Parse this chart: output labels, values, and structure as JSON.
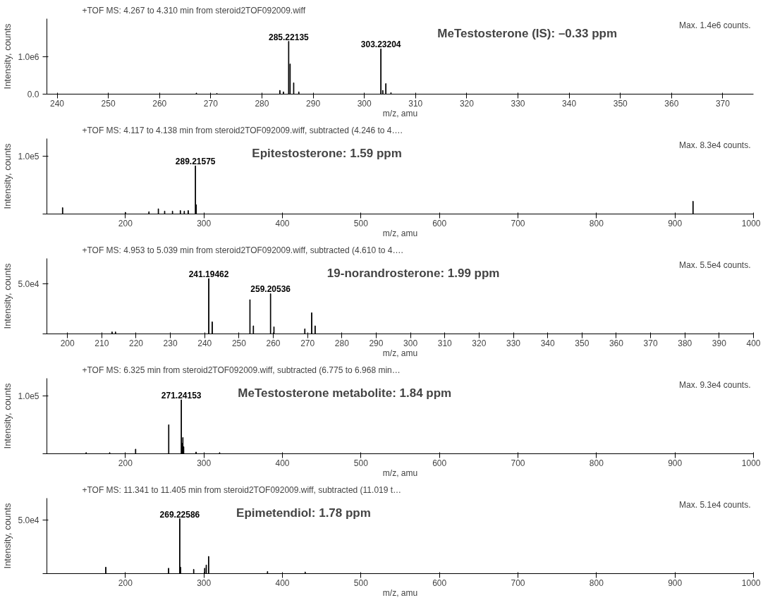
{
  "chart_data": [
    {
      "type": "bar",
      "title": "+TOF MS: 4.267 to 4.310 min from steroid2TOF092009.wiff",
      "xlabel": "m/z, amu",
      "ylabel": "Intensity, counts",
      "color": "#000000",
      "x": [
        267.2,
        271.2,
        283.5,
        284.2,
        285.22135,
        285.5,
        286.2,
        287.2,
        303.23204,
        303.6,
        304.2,
        305.2
      ],
      "values": [
        30000,
        20000,
        100000,
        60000,
        1400000,
        800000,
        300000,
        60000,
        1200000,
        100000,
        280000,
        40000
      ],
      "xlim": [
        238,
        376
      ],
      "xticks": [
        240,
        250,
        260,
        270,
        280,
        290,
        300,
        310,
        320,
        330,
        340,
        350,
        360,
        370
      ],
      "ylim": [
        0,
        2000000
      ],
      "yticks": [
        {
          "value": 0,
          "label": "0.0"
        },
        {
          "value": 1000000,
          "label": "1.0e6"
        }
      ],
      "annotations": [
        {
          "text": "285.22135",
          "x": 285.22135,
          "y": 1400000
        },
        {
          "text": "303.23204",
          "x": 303.23204,
          "y": 1200000
        },
        "MeTestosterone (IS): –0.33 ppm",
        "Max. 1.4e6 counts."
      ]
    },
    {
      "type": "bar",
      "title": "+TOF MS: 4.117 to 4.138 min from steroid2TOF092009.wiff, subtracted (4.246 to 4….",
      "xlabel": "m/z, amu",
      "ylabel": "Intensity, counts",
      "color": "#000000",
      "x": [
        120,
        200,
        230,
        242,
        250,
        260,
        270,
        275,
        280,
        289.21575,
        290.2,
        923
      ],
      "values": [
        11000,
        3000,
        4000,
        9000,
        5000,
        5000,
        6000,
        5000,
        6000,
        83000,
        16000,
        22000
      ],
      "xlim": [
        100,
        1000
      ],
      "xticks": [
        200,
        300,
        400,
        500,
        600,
        700,
        800,
        900,
        1000
      ],
      "ylim": [
        0,
        130000
      ],
      "yticks": [
        {
          "value": 0,
          "label": null
        },
        {
          "value": 100000,
          "label": "1.0e5"
        }
      ],
      "annotations": [
        {
          "text": "289.21575",
          "x": 289.21575,
          "y": 83000
        },
        "Epitestosterone: 1.59 ppm",
        "Max. 8.3e4 counts."
      ]
    },
    {
      "type": "bar",
      "title": "+TOF MS: 4.953 to 5.039 min from steroid2TOF092009.wiff, subtracted (4.610 to 4….",
      "xlabel": "m/z, amu",
      "ylabel": "Intensity, counts",
      "color": "#000000",
      "x": [
        213,
        214,
        241.19462,
        242.2,
        253.2,
        254.2,
        259.20536,
        260.2,
        269.2,
        271.2,
        272.2
      ],
      "values": [
        2000,
        2000,
        55000,
        12000,
        34000,
        8000,
        40000,
        7000,
        5000,
        21000,
        8000
      ],
      "xlim": [
        194,
        400
      ],
      "xticks": [
        200,
        210,
        220,
        230,
        240,
        250,
        260,
        270,
        280,
        290,
        300,
        310,
        320,
        330,
        340,
        350,
        360,
        370,
        380,
        390,
        400
      ],
      "ylim": [
        0,
        75000
      ],
      "yticks": [
        {
          "value": 0,
          "label": null
        },
        {
          "value": 50000,
          "label": "5.0e4"
        }
      ],
      "annotations": [
        {
          "text": "241.19462",
          "x": 241.19462,
          "y": 55000
        },
        {
          "text": "259.20536",
          "x": 259.20536,
          "y": 40000
        },
        "19-norandrosterone: 1.99 ppm",
        "Max. 5.5e4 counts."
      ]
    },
    {
      "type": "bar",
      "title": "+TOF MS: 6.325 min from steroid2TOF092009.wiff, subtracted (6.775 to 6.968 min…",
      "xlabel": "m/z, amu",
      "ylabel": "Intensity, counts",
      "color": "#000000",
      "x": [
        150,
        180,
        213,
        255.2,
        271.24153,
        272.2,
        273.2,
        274.2,
        290,
        320
      ],
      "values": [
        2000,
        2000,
        8000,
        50000,
        93000,
        18000,
        28000,
        12000,
        3000,
        2000
      ],
      "xlim": [
        100,
        1000
      ],
      "xticks": [
        200,
        300,
        400,
        500,
        600,
        700,
        800,
        900,
        1000
      ],
      "ylim": [
        0,
        130000
      ],
      "yticks": [
        {
          "value": 0,
          "label": null
        },
        {
          "value": 100000,
          "label": "1.0e5"
        }
      ],
      "annotations": [
        {
          "text": "271.24153",
          "x": 271.24153,
          "y": 93000
        },
        "MeTestosterone metabolite: 1.84 ppm",
        "Max. 9.3e4 counts."
      ]
    },
    {
      "type": "bar",
      "title": "+TOF MS: 11.341 to 11.405 min from steroid2TOF092009.wiff, subtracted (11.019 t…",
      "xlabel": "m/z, amu",
      "ylabel": "Intensity, counts",
      "color": "#000000",
      "x": [
        175,
        255,
        269.22586,
        270.2,
        287,
        301,
        303,
        306,
        381,
        429
      ],
      "values": [
        6000,
        5000,
        51000,
        6000,
        4000,
        5000,
        8000,
        16000,
        2000,
        1500
      ],
      "xlim": [
        100,
        1000
      ],
      "xticks": [
        200,
        300,
        400,
        500,
        600,
        700,
        800,
        900,
        1000
      ],
      "ylim": [
        0,
        70000
      ],
      "yticks": [
        {
          "value": 0,
          "label": null
        },
        {
          "value": 50000,
          "label": "5.0e4"
        }
      ],
      "annotations": [
        {
          "text": "269.22586",
          "x": 269.22586,
          "y": 51000
        },
        "Epimetendiol: 1.78 ppm",
        "Max. 5.1e4 counts."
      ]
    }
  ]
}
